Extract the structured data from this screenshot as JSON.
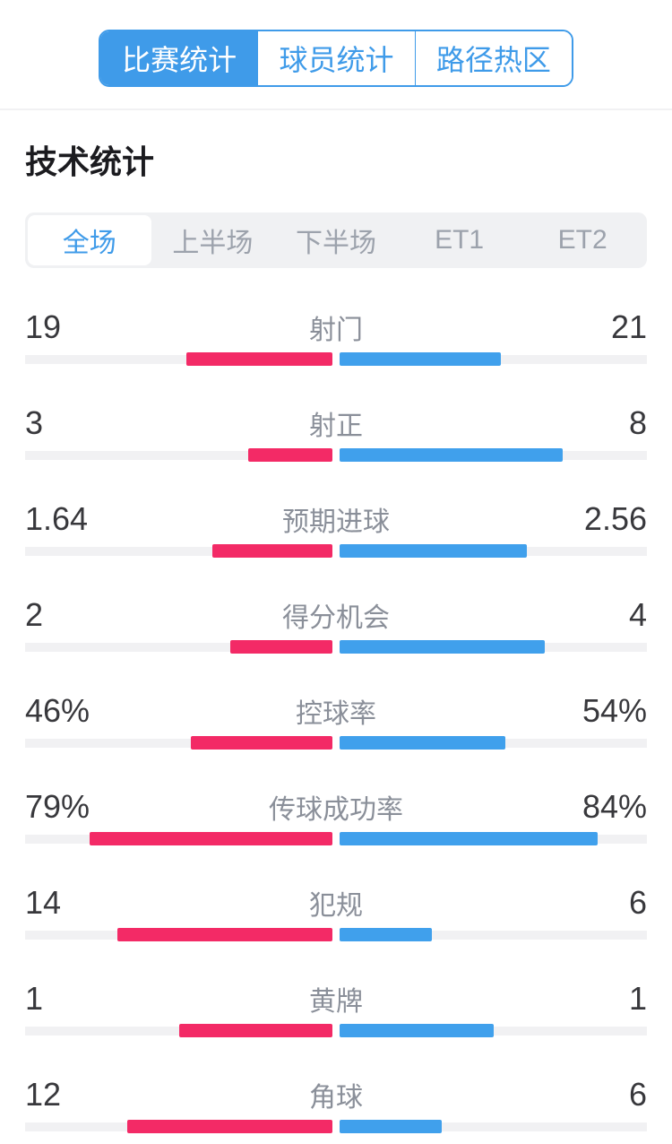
{
  "colors": {
    "accent_blue": "#3F9BE9",
    "bar_blue": "#40A0EC",
    "bar_pink": "#F32A66",
    "track_gray": "#F1F1F3",
    "inactive_gray": "#9CA2AC"
  },
  "top_tabs": {
    "items": [
      {
        "label": "比赛统计",
        "selected": true
      },
      {
        "label": "球员统计",
        "selected": false
      },
      {
        "label": "路径热区",
        "selected": false
      }
    ]
  },
  "section": {
    "title": "技术统计"
  },
  "period_tabs": {
    "items": [
      {
        "label": "全场",
        "selected": true
      },
      {
        "label": "上半场",
        "selected": false
      },
      {
        "label": "下半场",
        "selected": false
      },
      {
        "label": "ET1",
        "selected": false
      },
      {
        "label": "ET2",
        "selected": false
      }
    ]
  },
  "chart_data": {
    "type": "bar",
    "title": "技术统计",
    "home_color": "#F32A66",
    "away_color": "#40A0EC",
    "note": "bar length = value/(home+away) of half width; percent rows use value/100",
    "rows": [
      {
        "label": "射门",
        "home": "19",
        "away": "21"
      },
      {
        "label": "射正",
        "home": "3",
        "away": "8"
      },
      {
        "label": "预期进球",
        "home": "1.64",
        "away": "2.56"
      },
      {
        "label": "得分机会",
        "home": "2",
        "away": "4"
      },
      {
        "label": "控球率",
        "home": "46%",
        "away": "54%"
      },
      {
        "label": "传球成功率",
        "home": "79%",
        "away": "84%"
      },
      {
        "label": "犯规",
        "home": "14",
        "away": "6"
      },
      {
        "label": "黄牌",
        "home": "1",
        "away": "1"
      },
      {
        "label": "角球",
        "home": "12",
        "away": "6"
      }
    ]
  }
}
